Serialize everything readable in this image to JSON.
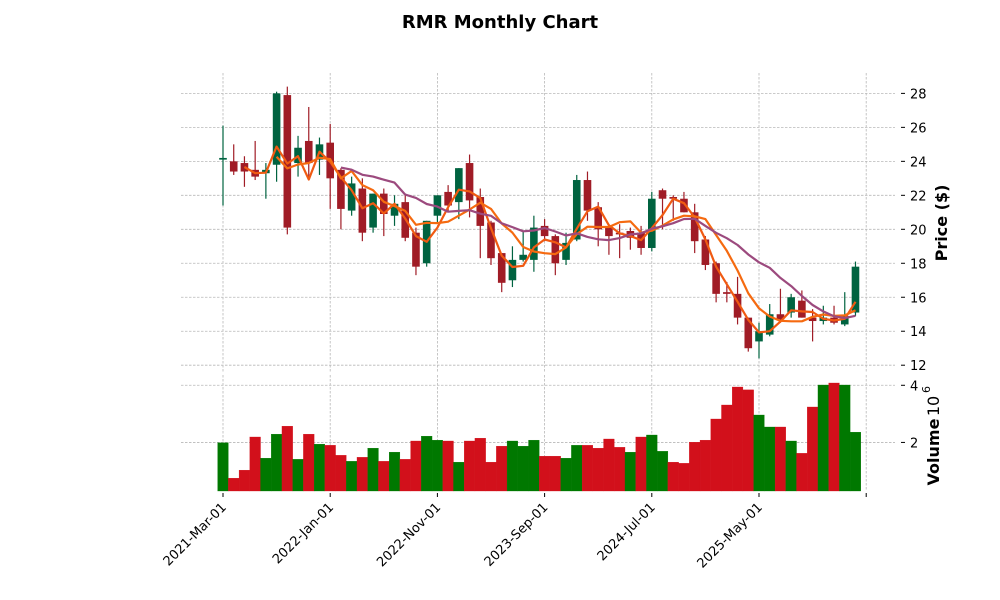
{
  "chart_data": {
    "type": "candlestick",
    "title": "RMR Monthly Chart",
    "ylabel": "Price ($)",
    "volume_label": "Volume",
    "volume_exponent": "10",
    "volume_exponent_power": "6",
    "ylim": [
      11.6,
      29.2
    ],
    "yticks": [
      "12",
      "14",
      "16",
      "18",
      "20",
      "22",
      "24",
      "26",
      "28"
    ],
    "volume_ylim": [
      0.3,
      4.36
    ],
    "volume_yticks": [
      "2",
      "4"
    ],
    "grid": true,
    "x_tick_indices": [
      0,
      10,
      20,
      30,
      40,
      50,
      60
    ],
    "x_tick_labels": [
      "2021-Mar-01",
      "2022-Jan-01",
      "2022-Nov-01",
      "2023-Sep-01",
      "2024-Jul-01",
      "2025-May-01",
      ""
    ],
    "moving_average_windows": [
      3,
      6,
      12
    ],
    "colors": {
      "candle_up": "#006340",
      "candle_down": "#a01c26",
      "volume_up": "#007800",
      "volume_down": "#d2101b",
      "ma": [
        "#f05a12",
        "#f56a10",
        "#9c4a7e"
      ]
    },
    "open": [
      24.1,
      24.0,
      23.9,
      23.5,
      23.3,
      23.8,
      27.9,
      23.9,
      25.2,
      24.1,
      25.1,
      23.5,
      21.1,
      22.4,
      20.1,
      22.1,
      20.8,
      21.6,
      19.8,
      18.0,
      20.8,
      22.2,
      21.6,
      23.9,
      21.9,
      20.4,
      18.6,
      17.0,
      18.2,
      18.2,
      20.2,
      19.6,
      18.2,
      19.4,
      22.9,
      21.3,
      20.1,
      19.8,
      19.9,
      19.8,
      18.9,
      22.3,
      21.9,
      21.8,
      21.0,
      19.4,
      18.0,
      16.3,
      16.2,
      14.8,
      13.4,
      13.8,
      15.0,
      15.1,
      15.8,
      14.8,
      14.6,
      14.8,
      14.4,
      15.1
    ],
    "high": [
      26.1,
      25.0,
      24.3,
      25.2,
      23.9,
      28.1,
      28.4,
      25.5,
      27.2,
      25.4,
      26.2,
      23.6,
      23.1,
      23.0,
      22.1,
      22.4,
      22.0,
      22.1,
      20.1,
      20.5,
      22.0,
      22.6,
      23.6,
      24.4,
      22.4,
      20.5,
      18.6,
      19.0,
      19.9,
      20.8,
      20.6,
      19.7,
      19.8,
      23.2,
      23.4,
      21.6,
      20.3,
      20.3,
      20.1,
      20.2,
      22.2,
      22.4,
      22.0,
      22.2,
      21.5,
      19.6,
      18.1,
      16.9,
      17.2,
      14.8,
      14.5,
      15.6,
      16.5,
      16.2,
      16.4,
      15.3,
      15.5,
      15.5,
      16.3,
      18.1
    ],
    "low": [
      21.4,
      23.2,
      22.5,
      22.9,
      21.8,
      22.8,
      19.7,
      23.1,
      23.1,
      23.2,
      21.2,
      20.0,
      20.8,
      19.3,
      19.8,
      19.6,
      20.2,
      19.3,
      17.3,
      17.8,
      20.4,
      21.0,
      20.6,
      20.7,
      18.3,
      17.9,
      16.3,
      16.6,
      18.1,
      17.5,
      19.3,
      17.3,
      17.9,
      19.3,
      20.5,
      19.0,
      18.5,
      18.3,
      18.8,
      18.5,
      18.7,
      20.0,
      20.5,
      21.0,
      18.6,
      17.6,
      15.7,
      15.7,
      14.4,
      12.8,
      12.4,
      13.7,
      14.5,
      14.8,
      14.8,
      13.4,
      14.4,
      14.4,
      14.3,
      14.9
    ],
    "close": [
      24.2,
      23.4,
      23.4,
      23.1,
      23.5,
      28.0,
      20.1,
      24.8,
      23.9,
      25.0,
      23.0,
      21.2,
      22.7,
      19.8,
      22.1,
      20.9,
      21.5,
      19.5,
      17.8,
      20.5,
      22.0,
      21.4,
      23.6,
      21.7,
      20.2,
      18.3,
      16.85,
      18.2,
      18.5,
      20.1,
      19.6,
      18.0,
      19.2,
      22.9,
      21.1,
      20.0,
      19.6,
      19.7,
      19.5,
      18.9,
      21.8,
      21.8,
      21.8,
      21.0,
      19.3,
      17.9,
      16.2,
      16.2,
      14.8,
      13.0,
      14.0,
      15.0,
      14.7,
      16.0,
      14.8,
      14.6,
      14.8,
      14.5,
      14.9,
      17.8
    ],
    "volume": [
      1.99,
      0.75,
      1.03,
      2.19,
      1.45,
      2.29,
      2.57,
      1.41,
      2.29,
      1.94,
      1.9,
      1.55,
      1.34,
      1.48,
      1.8,
      1.34,
      1.66,
      1.41,
      2.05,
      2.22,
      2.08,
      2.05,
      1.31,
      2.05,
      2.15,
      1.31,
      1.87,
      2.05,
      1.87,
      2.08,
      1.52,
      1.52,
      1.45,
      1.9,
      1.9,
      1.8,
      2.12,
      1.83,
      1.66,
      2.19,
      2.26,
      1.69,
      1.31,
      1.27,
      2.01,
      2.08,
      2.82,
      3.31,
      3.94,
      3.84,
      2.96,
      2.54,
      2.54,
      2.05,
      1.62,
      3.24,
      4.01,
      4.08,
      4.01,
      2.36
    ],
    "volume_direction": [
      "up",
      "down",
      "down",
      "down",
      "up",
      "up",
      "down",
      "up",
      "down",
      "up",
      "down",
      "down",
      "up",
      "down",
      "up",
      "down",
      "up",
      "down",
      "down",
      "up",
      "up",
      "down",
      "up",
      "down",
      "down",
      "down",
      "down",
      "up",
      "up",
      "up",
      "down",
      "down",
      "up",
      "up",
      "down",
      "down",
      "down",
      "down",
      "up",
      "down",
      "up",
      "up",
      "down",
      "down",
      "down",
      "down",
      "down",
      "down",
      "down",
      "down",
      "up",
      "up",
      "down",
      "up",
      "down",
      "down",
      "up",
      "down",
      "up",
      "up"
    ]
  }
}
